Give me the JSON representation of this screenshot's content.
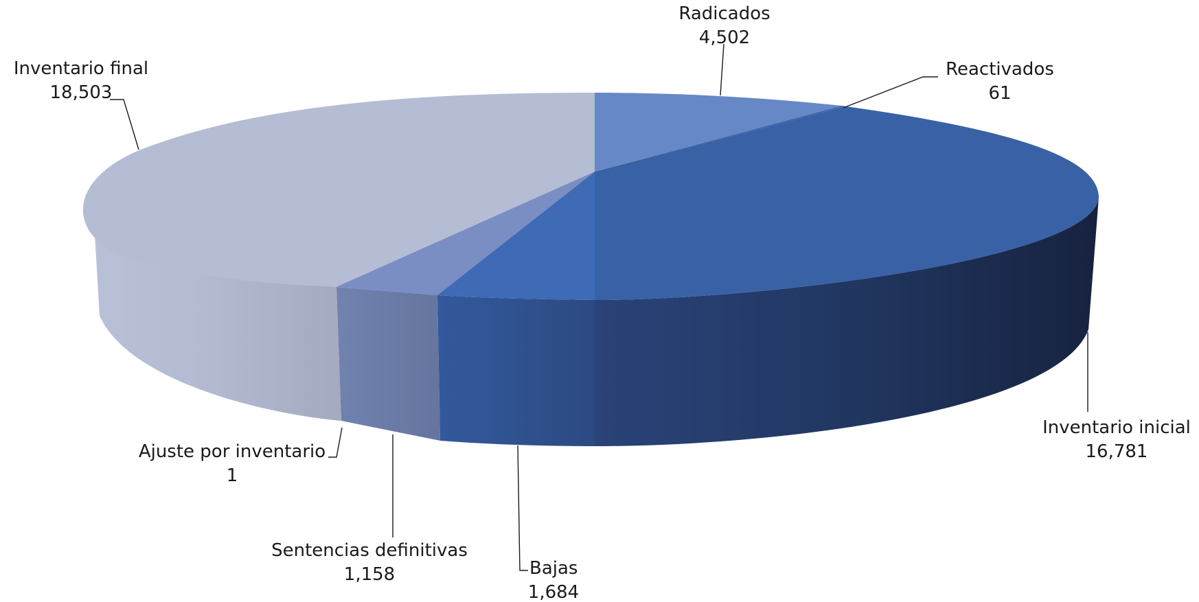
{
  "chart_data": {
    "type": "pie",
    "style": "3d",
    "title": "",
    "slices": [
      {
        "label": "Radicados",
        "value": 4502,
        "value_label": "4,502",
        "color": "#6788c6",
        "side_color": "#4e6aa6"
      },
      {
        "label": "Reactivados",
        "value": 61,
        "value_label": "61",
        "color": "#3d63ac",
        "side_color": "#2a4784"
      },
      {
        "label": "Inventario inicial",
        "value": 16781,
        "value_label": "16,781",
        "color": "#3961a6",
        "side_color": "#1c2c4f"
      },
      {
        "label": "Bajas",
        "value": 1684,
        "value_label": "1,684",
        "color": "#3e6ab6",
        "side_color": "#2f5190"
      },
      {
        "label": "Sentencias definitivas",
        "value": 1158,
        "value_label": "1,158",
        "color": "#7a8ec4",
        "side_color": "#6878a6"
      },
      {
        "label": "Ajuste por inventario",
        "value": 1,
        "value_label": "1",
        "color": "#7a8ec4",
        "side_color": "#6878a6"
      },
      {
        "label": "Inventario final",
        "value": 18503,
        "value_label": "18,503",
        "color": "#b5bdd4",
        "side_color": "#a6aec4"
      }
    ],
    "legend": "none",
    "labels_position": "outside-with-leader-lines"
  }
}
